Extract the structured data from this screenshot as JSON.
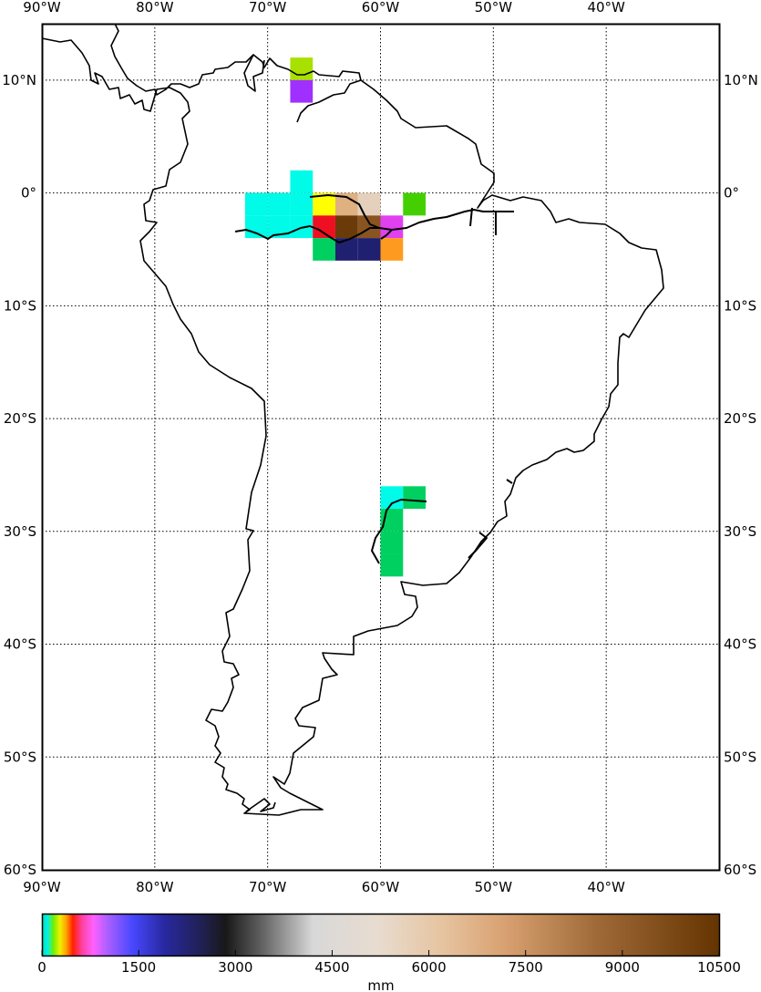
{
  "map": {
    "lon_range": [
      -90,
      -30
    ],
    "lat_range": [
      -60,
      15
    ],
    "graticule": "dotted",
    "meridian_labels": [
      {
        "lon": -90,
        "text": "90°W"
      },
      {
        "lon": -80,
        "text": "80°W"
      },
      {
        "lon": -70,
        "text": "70°W"
      },
      {
        "lon": -60,
        "text": "60°W"
      },
      {
        "lon": -50,
        "text": "50°W"
      },
      {
        "lon": -40,
        "text": "40°W"
      }
    ],
    "parallel_labels": [
      {
        "lat": 10,
        "text": "10°N"
      },
      {
        "lat": 0,
        "text": "0°"
      },
      {
        "lat": -10,
        "text": "10°S"
      },
      {
        "lat": -20,
        "text": "20°S"
      },
      {
        "lat": -30,
        "text": "30°S"
      },
      {
        "lat": -40,
        "text": "40°S"
      },
      {
        "lat": -50,
        "text": "50°S"
      },
      {
        "lat": -60,
        "text": "60°S"
      }
    ],
    "colors": {
      "coastline": "#000000",
      "rivers": "#000000",
      "frame": "#000000",
      "grid": "#000000"
    },
    "grid_cells": [
      {
        "lon": -68,
        "lat": 10,
        "color": "#a8e000"
      },
      {
        "lon": -68,
        "lat": 8,
        "color": "#a030ff"
      },
      {
        "lon": -68,
        "lat": 0,
        "color": "#00fce8"
      },
      {
        "lon": -72,
        "lat": -2,
        "color": "#00fce8"
      },
      {
        "lon": -70,
        "lat": -2,
        "color": "#00fce8"
      },
      {
        "lon": -68,
        "lat": -2,
        "color": "#00fce8"
      },
      {
        "lon": -72,
        "lat": -4,
        "color": "#00fce8"
      },
      {
        "lon": -70,
        "lat": -4,
        "color": "#00fce8"
      },
      {
        "lon": -68,
        "lat": -4,
        "color": "#00fce8"
      },
      {
        "lon": -66,
        "lat": -2,
        "color": "#ffff00"
      },
      {
        "lon": -64,
        "lat": -2,
        "color": "#dfb080"
      },
      {
        "lon": -62,
        "lat": -2,
        "color": "#e4d0bc"
      },
      {
        "lon": -58,
        "lat": -2,
        "color": "#44d000"
      },
      {
        "lon": -66,
        "lat": -4,
        "color": "#ee1020"
      },
      {
        "lon": -64,
        "lat": -4,
        "color": "#6a3a08"
      },
      {
        "lon": -62,
        "lat": -4,
        "color": "#8a5420"
      },
      {
        "lon": -60,
        "lat": -4,
        "color": "#e040f0"
      },
      {
        "lon": -66,
        "lat": -6,
        "color": "#00d060"
      },
      {
        "lon": -64,
        "lat": -6,
        "color": "#202070"
      },
      {
        "lon": -62,
        "lat": -6,
        "color": "#202070"
      },
      {
        "lon": -60,
        "lat": -6,
        "color": "#ff9a20"
      },
      {
        "lon": -60,
        "lat": -28,
        "color": "#00fce8"
      },
      {
        "lon": -58,
        "lat": -28,
        "color": "#00d060"
      },
      {
        "lon": -60,
        "lat": -30,
        "color": "#00d060"
      },
      {
        "lon": -60,
        "lat": -32,
        "color": "#00d060"
      },
      {
        "lon": -60,
        "lat": -34,
        "color": "#00d060"
      }
    ]
  },
  "colorbar": {
    "range": [
      0,
      10500
    ],
    "ticks": [
      {
        "value": 0,
        "text": "0"
      },
      {
        "value": 1500,
        "text": "1500"
      },
      {
        "value": 3000,
        "text": "3000"
      },
      {
        "value": 4500,
        "text": "4500"
      },
      {
        "value": 6000,
        "text": "6000"
      },
      {
        "value": 7500,
        "text": "7500"
      },
      {
        "value": 9000,
        "text": "9000"
      },
      {
        "value": 10500,
        "text": "10500"
      }
    ],
    "label": "mm",
    "stops": [
      {
        "value": 0,
        "color": "#00e0a0"
      },
      {
        "value": 80,
        "color": "#00f0f0"
      },
      {
        "value": 180,
        "color": "#70f000"
      },
      {
        "value": 280,
        "color": "#f0f000"
      },
      {
        "value": 380,
        "color": "#ffa000"
      },
      {
        "value": 480,
        "color": "#ff2000"
      },
      {
        "value": 620,
        "color": "#ff40a0"
      },
      {
        "value": 800,
        "color": "#ff60ff"
      },
      {
        "value": 1000,
        "color": "#b060ff"
      },
      {
        "value": 1400,
        "color": "#4848ff"
      },
      {
        "value": 1900,
        "color": "#2828a0"
      },
      {
        "value": 2500,
        "color": "#202050"
      },
      {
        "value": 2850,
        "color": "#181818"
      },
      {
        "value": 3400,
        "color": "#606060"
      },
      {
        "value": 4200,
        "color": "#d8d8d8"
      },
      {
        "value": 5200,
        "color": "#e8dcd0"
      },
      {
        "value": 6200,
        "color": "#e6c4a0"
      },
      {
        "value": 7200,
        "color": "#d8a070"
      },
      {
        "value": 8600,
        "color": "#a06a38"
      },
      {
        "value": 10500,
        "color": "#643400"
      }
    ]
  }
}
